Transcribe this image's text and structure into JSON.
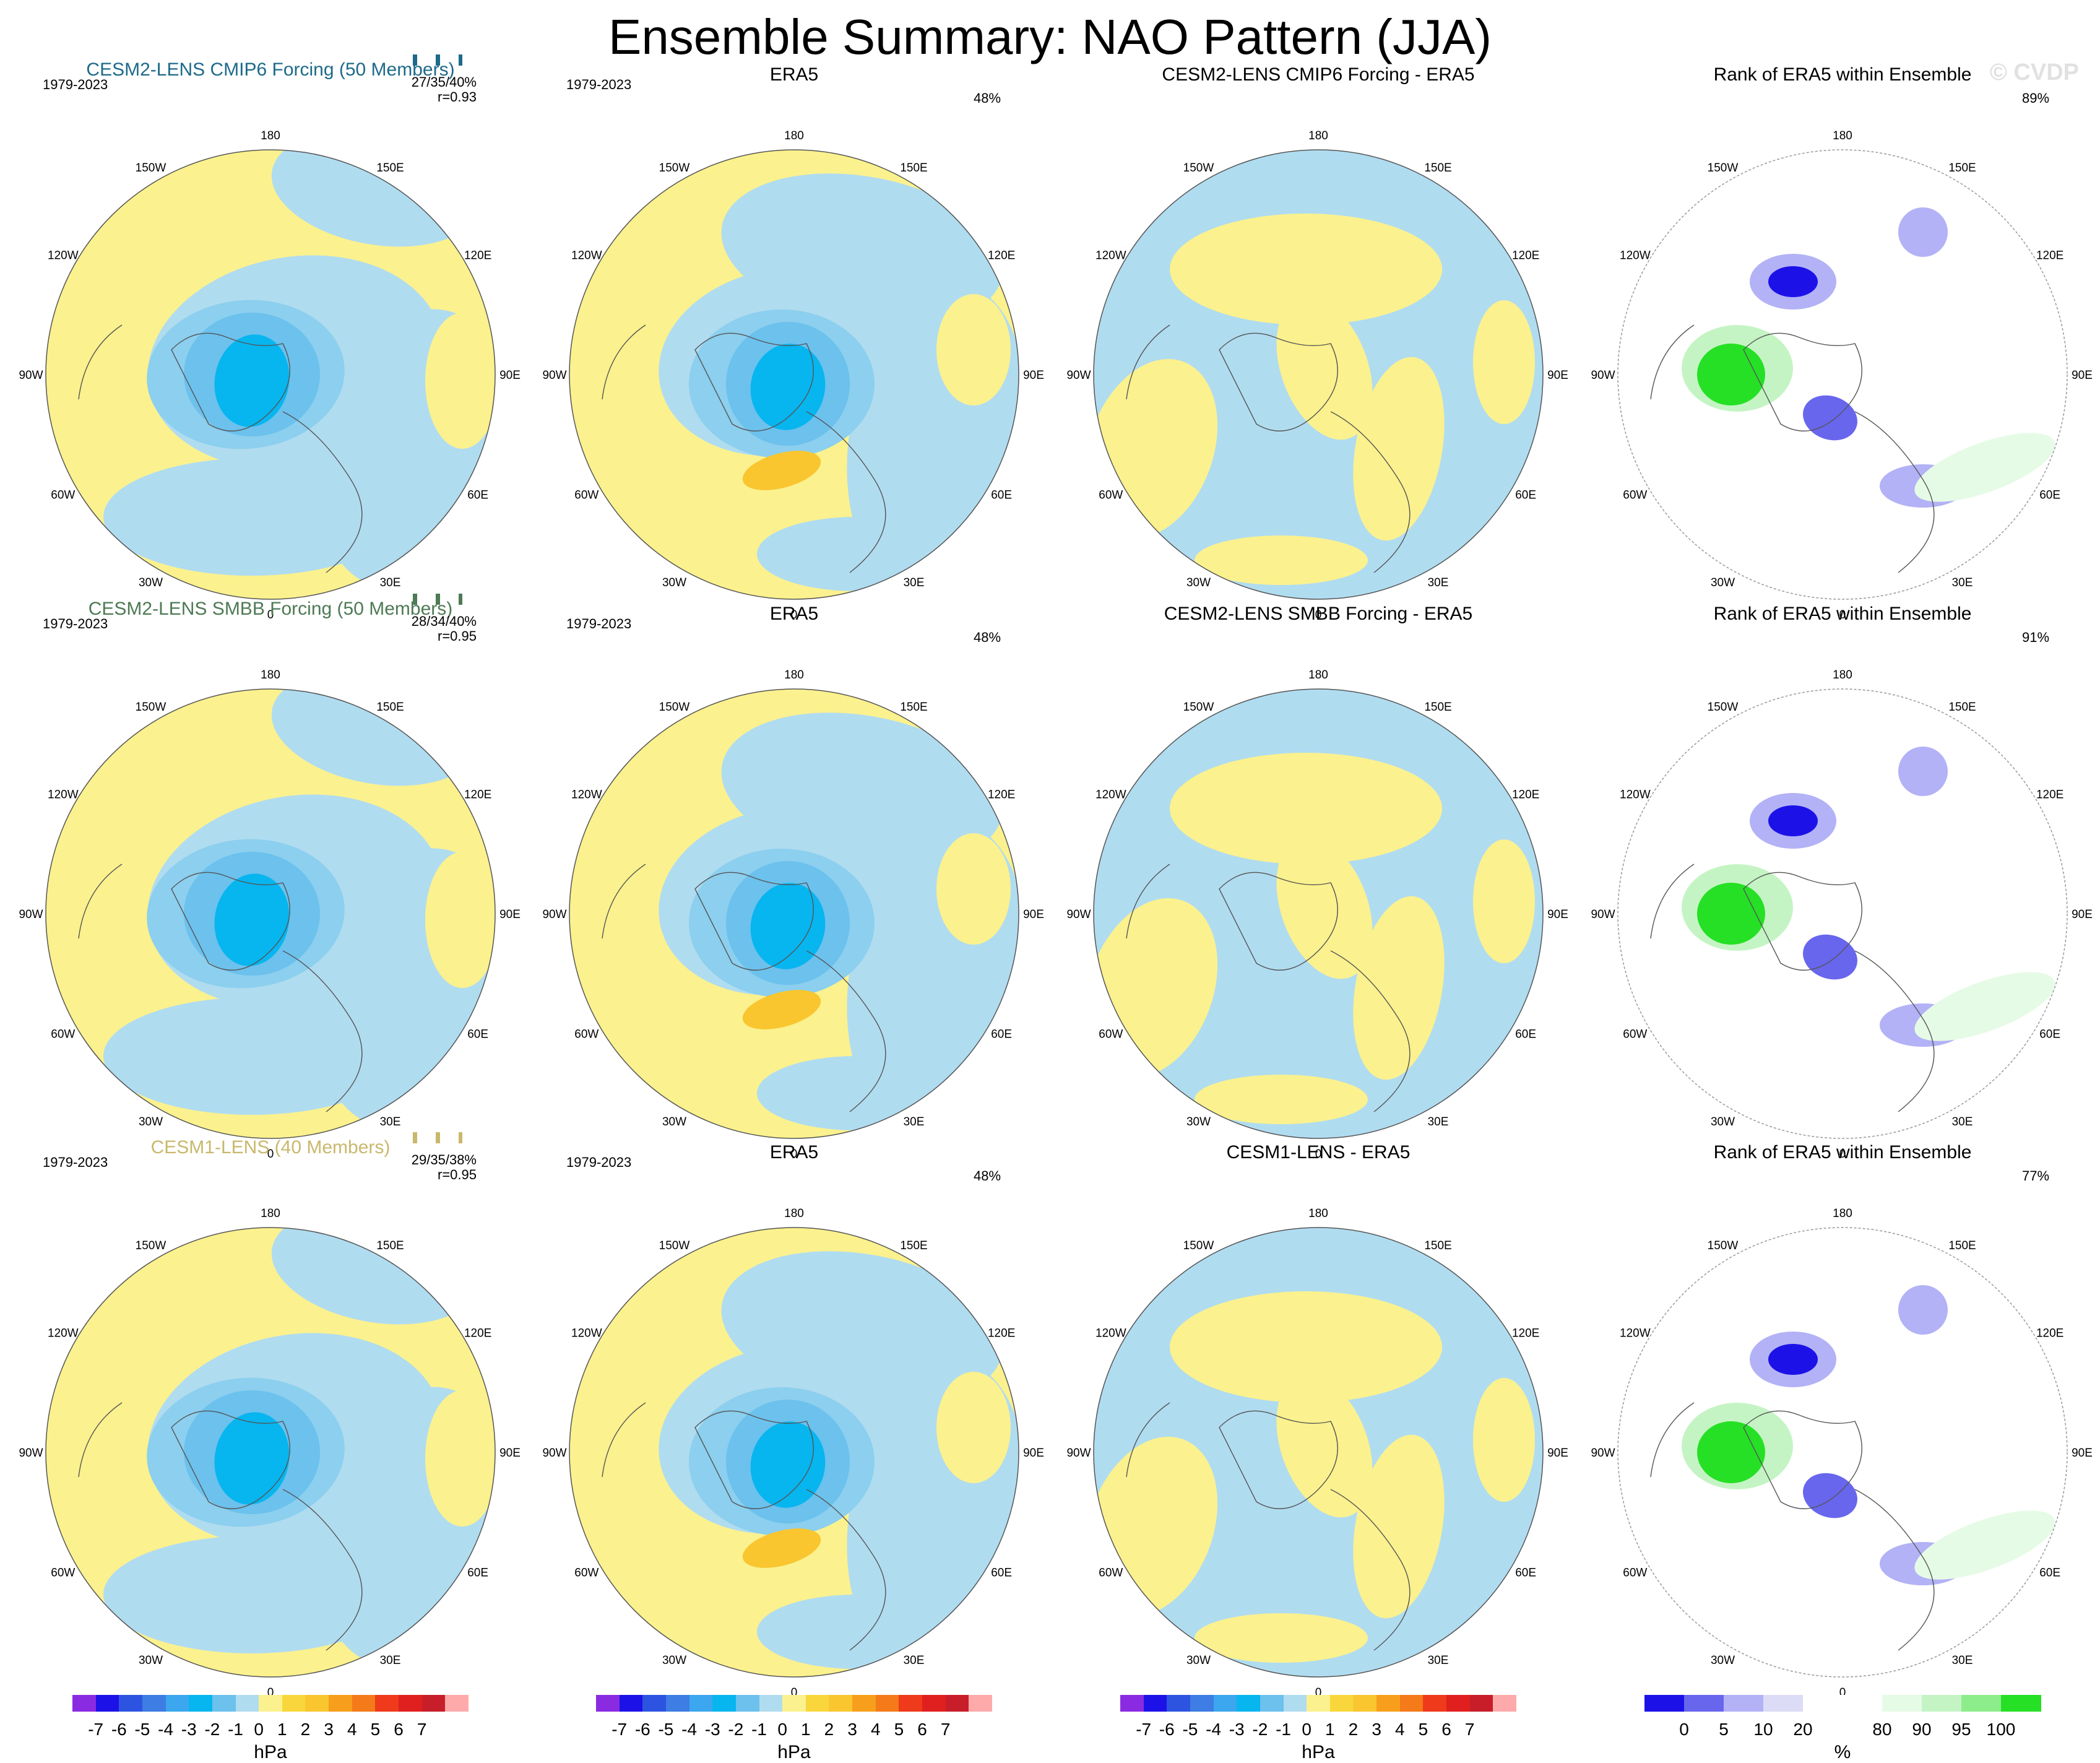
{
  "page": {
    "title": "Ensemble Summary: NAO Pattern (JJA)",
    "watermark": "© CVDP"
  },
  "colors": {
    "yellow": "#fbf18e",
    "light_blue": "#b0dcf0",
    "mid_blue": "#6cc1ed",
    "deep_blue": "#07b5ef",
    "orange": "#f9c630",
    "rank_blue": "#1c12e8",
    "rank_green": "#26e025"
  },
  "chart_data": [
    {
      "type": "map",
      "id": "r1c1",
      "title": "CESM2-LENS CMIP6 Forcing (50 Members)",
      "title_color": "#1d6a8a",
      "period": "1979-2023",
      "stat_line1": "27/35/40%",
      "stat_line2": "r=0.93",
      "pct": null,
      "variant": "model",
      "colorbar": "hPa"
    },
    {
      "type": "map",
      "id": "r1c2",
      "title": "ERA5",
      "title_color": "#000000",
      "period": "1979-2023",
      "stat_line1": null,
      "stat_line2": null,
      "pct": "48%",
      "variant": "obs",
      "colorbar": "hPa"
    },
    {
      "type": "map",
      "id": "r1c3",
      "title": "CESM2-LENS CMIP6 Forcing - ERA5",
      "title_color": "#000000",
      "period": null,
      "stat_line1": null,
      "stat_line2": null,
      "pct": null,
      "variant": "diff",
      "colorbar": "hPa"
    },
    {
      "type": "map",
      "id": "r1c4",
      "title": "Rank of ERA5 within Ensemble",
      "title_color": "#000000",
      "period": null,
      "stat_line1": null,
      "stat_line2": null,
      "pct": "89%",
      "variant": "rank",
      "colorbar": "%"
    },
    {
      "type": "map",
      "id": "r2c1",
      "title": "CESM2-LENS SMBB Forcing (50 Members)",
      "title_color": "#4e7a55",
      "period": "1979-2023",
      "stat_line1": "28/34/40%",
      "stat_line2": "r=0.95",
      "pct": null,
      "variant": "model",
      "colorbar": "hPa"
    },
    {
      "type": "map",
      "id": "r2c2",
      "title": "ERA5",
      "title_color": "#000000",
      "period": "1979-2023",
      "stat_line1": null,
      "stat_line2": null,
      "pct": "48%",
      "variant": "obs",
      "colorbar": "hPa"
    },
    {
      "type": "map",
      "id": "r2c3",
      "title": "CESM2-LENS SMBB Forcing - ERA5",
      "title_color": "#000000",
      "period": null,
      "stat_line1": null,
      "stat_line2": null,
      "pct": null,
      "variant": "diff",
      "colorbar": "hPa"
    },
    {
      "type": "map",
      "id": "r2c4",
      "title": "Rank of ERA5 within Ensemble",
      "title_color": "#000000",
      "period": null,
      "stat_line1": null,
      "stat_line2": null,
      "pct": "91%",
      "variant": "rank",
      "colorbar": "%"
    },
    {
      "type": "map",
      "id": "r3c1",
      "title": "CESM1-LENS (40 Members)",
      "title_color": "#c9b86c",
      "period": "1979-2023",
      "stat_line1": "29/35/38%",
      "stat_line2": "r=0.95",
      "pct": null,
      "variant": "model",
      "colorbar": "hPa"
    },
    {
      "type": "map",
      "id": "r3c2",
      "title": "ERA5",
      "title_color": "#000000",
      "period": "1979-2023",
      "stat_line1": null,
      "stat_line2": null,
      "pct": "48%",
      "variant": "obs",
      "colorbar": "hPa"
    },
    {
      "type": "map",
      "id": "r3c3",
      "title": "CESM1-LENS - ERA5",
      "title_color": "#000000",
      "period": null,
      "stat_line1": null,
      "stat_line2": null,
      "pct": null,
      "variant": "diff",
      "colorbar": "hPa"
    },
    {
      "type": "map",
      "id": "r3c4",
      "title": "Rank of ERA5 within Ensemble",
      "title_color": "#000000",
      "period": null,
      "stat_line1": null,
      "stat_line2": null,
      "pct": "77%",
      "variant": "rank",
      "colorbar": "%"
    }
  ],
  "map_labels": {
    "lon_labels": [
      "180",
      "150E",
      "120E",
      "90E",
      "60E",
      "30E",
      "0",
      "30W",
      "60W",
      "90W",
      "120W",
      "150W"
    ]
  },
  "colorbars": {
    "hpa": {
      "unit": "hPa",
      "colors": [
        "#8a2be2",
        "#1c12e8",
        "#2d54e0",
        "#3d7de4",
        "#3ca7ee",
        "#07b5ef",
        "#6cc1ed",
        "#b0dcf0",
        "#fbf18e",
        "#f9d73c",
        "#f9c630",
        "#f79f1c",
        "#f47a1a",
        "#ef3a1c",
        "#e0201e",
        "#c81e2a",
        "#ffaaaa"
      ],
      "ticks": [
        "-7",
        "-6",
        "-5",
        "-4",
        "-3",
        "-2",
        "-1",
        "0",
        "1",
        "2",
        "3",
        "4",
        "5",
        "6",
        "7"
      ]
    },
    "rank": {
      "unit": "%",
      "colors": [
        "#1c12e8",
        "#6866ed",
        "#b3b2f6",
        "#dcdcf6",
        "#ffffff",
        "#ffffff",
        "#e6fbe6",
        "#c5f4c4",
        "#8ded8b",
        "#26e025"
      ],
      "ticks": [
        "0",
        "5",
        "10",
        "20",
        "80",
        "90",
        "95",
        "100"
      ]
    }
  }
}
